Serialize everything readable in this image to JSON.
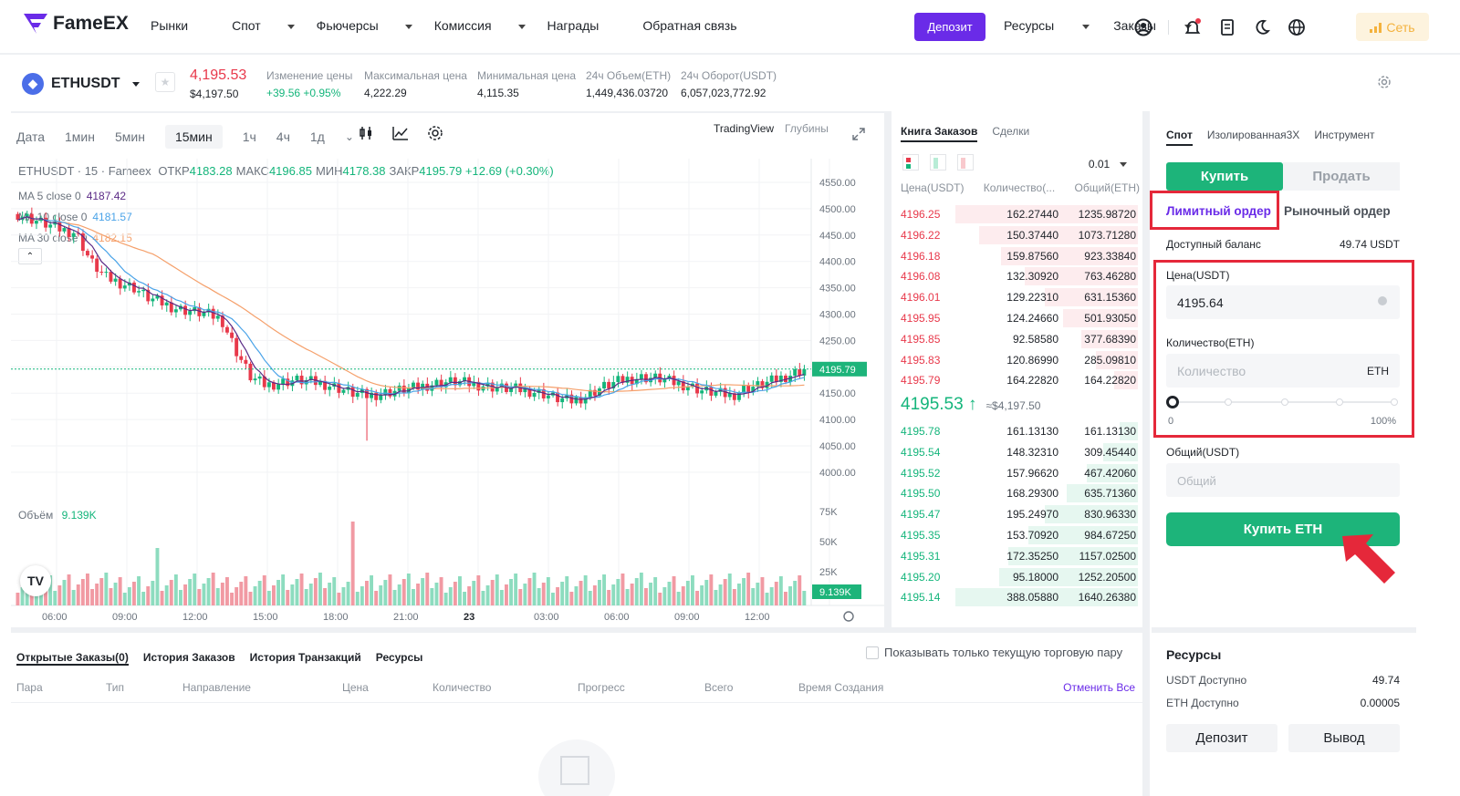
{
  "nav": {
    "logo": "FameEX",
    "items": [
      {
        "label": "Рынки",
        "dropdown": false
      },
      {
        "label": "Спот",
        "dropdown": true
      },
      {
        "label": "Фьючерсы",
        "dropdown": true
      },
      {
        "label": "Комиссия",
        "dropdown": true
      },
      {
        "label": "Награды",
        "dropdown": false
      },
      {
        "label": "Обратная связь",
        "dropdown": false
      }
    ],
    "deposit": "Депозит",
    "resources": "Ресурсы",
    "orders": "Заказы",
    "network": "Сеть",
    "icons": [
      "user-icon",
      "bell-icon",
      "document-icon",
      "moon-icon",
      "globe-icon"
    ]
  },
  "ticker": {
    "symbol": "ETHUSDT",
    "price": "4,195.53",
    "price_usd": "$4,197.50",
    "stats": [
      {
        "label": "Изменение цены",
        "value": "+39.56 +0.95%",
        "color": "#14b57b"
      },
      {
        "label": "Максимальная цена",
        "value": "4,222.29"
      },
      {
        "label": "Минимальная цена",
        "value": "4,115.35"
      },
      {
        "label": "24ч Объем(ETH)",
        "value": "1,449,436.03720"
      },
      {
        "label": "24ч Оборот(USDT)",
        "value": "6,057,023,772.92"
      }
    ]
  },
  "chart": {
    "timeframes": [
      "Дата",
      "1мин",
      "5мин",
      "15мин",
      "1ч",
      "4ч",
      "1д"
    ],
    "active_timeframe": "15мин",
    "view_tabs": [
      "TradingView",
      "Глубины"
    ],
    "legend_line1_prefix": "ETHUSDT · 15 · Fameex",
    "ohlc": [
      {
        "k": "ОТКР",
        "v": "4183.28"
      },
      {
        "k": "МАКС",
        "v": "4196.85"
      },
      {
        "k": "МИН",
        "v": "4178.38"
      },
      {
        "k": "ЗАКР",
        "v": "4195.79"
      }
    ],
    "change": "+12.69 (+0.30%)",
    "ma": [
      {
        "label": "MA 5 close 0",
        "value": "4187.42",
        "color": "#5b2a86"
      },
      {
        "label": "MA 10 close 0",
        "value": "4181.57",
        "color": "#4aa3e8"
      },
      {
        "label": "MA 30 close 0",
        "value": "4182.15",
        "color": "#f5a06b"
      }
    ],
    "volume_label": "Объём",
    "volume_value": "9.139K",
    "current_price_tag": "4195.79",
    "volume_tag": "9.139K"
  },
  "chart_data": {
    "type": "candlestick",
    "y_ticks": [
      "4550.00",
      "4500.00",
      "4450.00",
      "4400.00",
      "4350.00",
      "4300.00",
      "4250.00",
      "4200.00",
      "4150.00",
      "4100.00",
      "4050.00",
      "4000.00"
    ],
    "vol_ticks": [
      "75K",
      "50K",
      "25K"
    ],
    "x_ticks": [
      "06:00",
      "09:00",
      "12:00",
      "15:00",
      "18:00",
      "21:00",
      "23",
      "03:00",
      "06:00",
      "09:00",
      "12:00"
    ],
    "ylim": [
      4000,
      4550
    ],
    "close_path": [
      4490,
      4480,
      4470,
      4460,
      4455,
      4400,
      4370,
      4360,
      4350,
      4330,
      4320,
      4310,
      4305,
      4300,
      4290,
      4230,
      4180,
      4165,
      4170,
      4175,
      4172,
      4168,
      4160,
      4150,
      4145,
      4150,
      4155,
      4158,
      4165,
      4170,
      4172,
      4168,
      4165,
      4160,
      4158,
      4155,
      4150,
      4140,
      4135,
      4145,
      4160,
      4170,
      4178,
      4180,
      4178,
      4170,
      4165,
      4155,
      4150,
      4145,
      4160,
      4165,
      4175,
      4185,
      4195.79
    ]
  },
  "orderbook": {
    "tabs": [
      "Книга Заказов",
      "Сделки"
    ],
    "precision": "0.01",
    "headers": [
      "Цена(USDT)",
      "Количество(...",
      "Общий(ETH)"
    ],
    "asks": [
      {
        "p": "4196.25",
        "q": "162.27440",
        "t": "1235.98720",
        "depth": 1.0
      },
      {
        "p": "4196.22",
        "q": "150.37440",
        "t": "1073.71280",
        "depth": 0.87
      },
      {
        "p": "4196.18",
        "q": "159.87560",
        "t": "923.33840",
        "depth": 0.75
      },
      {
        "p": "4196.08",
        "q": "132.30920",
        "t": "763.46280",
        "depth": 0.62
      },
      {
        "p": "4196.01",
        "q": "129.22310",
        "t": "631.15360",
        "depth": 0.51
      },
      {
        "p": "4195.95",
        "q": "124.24660",
        "t": "501.93050",
        "depth": 0.41
      },
      {
        "p": "4195.85",
        "q": "92.58580",
        "t": "377.68390",
        "depth": 0.31
      },
      {
        "p": "4195.83",
        "q": "120.86990",
        "t": "285.09810",
        "depth": 0.23
      },
      {
        "p": "4195.79",
        "q": "164.22820",
        "t": "164.22820",
        "depth": 0.13
      }
    ],
    "mid_price": "4195.53",
    "mid_usd": "≈$4,197.50",
    "bids": [
      {
        "p": "4195.78",
        "q": "161.13130",
        "t": "161.13130",
        "depth": 0.1
      },
      {
        "p": "4195.54",
        "q": "148.32310",
        "t": "309.45440",
        "depth": 0.19
      },
      {
        "p": "4195.52",
        "q": "157.96620",
        "t": "467.42060",
        "depth": 0.28
      },
      {
        "p": "4195.50",
        "q": "168.29300",
        "t": "635.71360",
        "depth": 0.39
      },
      {
        "p": "4195.47",
        "q": "195.24970",
        "t": "830.96330",
        "depth": 0.51
      },
      {
        "p": "4195.35",
        "q": "153.70920",
        "t": "984.67250",
        "depth": 0.6
      },
      {
        "p": "4195.31",
        "q": "172.35250",
        "t": "1157.02500",
        "depth": 0.71
      },
      {
        "p": "4195.20",
        "q": "95.18000",
        "t": "1252.20500",
        "depth": 0.76
      },
      {
        "p": "4195.14",
        "q": "388.05880",
        "t": "1640.26380",
        "depth": 1.0
      }
    ]
  },
  "trade": {
    "tabs": [
      "Спот",
      "Изолированная3X",
      "Инструмент"
    ],
    "buy": "Купить",
    "sell": "Продать",
    "limit": "Лимитный ордер",
    "market": "Рыночный ордер",
    "balance_label": "Доступный баланс",
    "balance_value": "49.74 USDT",
    "price_label": "Цена(USDT)",
    "price_value": "4195.64",
    "qty_label": "Количество(ETH)",
    "qty_placeholder": "Количество",
    "qty_unit": "ETH",
    "slider_min": "0",
    "slider_max": "100%",
    "slider_value": 0,
    "total_label": "Общий(USDT)",
    "total_placeholder": "Общий",
    "buy_eth": "Купить ETH"
  },
  "bottom": {
    "tabs": [
      "Открытые Заказы(0)",
      "История Заказов",
      "История Транзакций",
      "Ресурсы"
    ],
    "only_current": "Показывать только текущую торговую пару",
    "columns": [
      "Пара",
      "Тип",
      "Направление",
      "Цена",
      "Количество",
      "Прогресс",
      "Всего",
      "Время Создания"
    ],
    "cancel_all": "Отменить Все"
  },
  "resources": {
    "title": "Ресурсы",
    "usdt_label": "USDT Доступно",
    "usdt_value": "49.74",
    "eth_label": "ETH Доступно",
    "eth_value": "0.00005",
    "deposit": "Депозит",
    "withdraw": "Вывод"
  }
}
